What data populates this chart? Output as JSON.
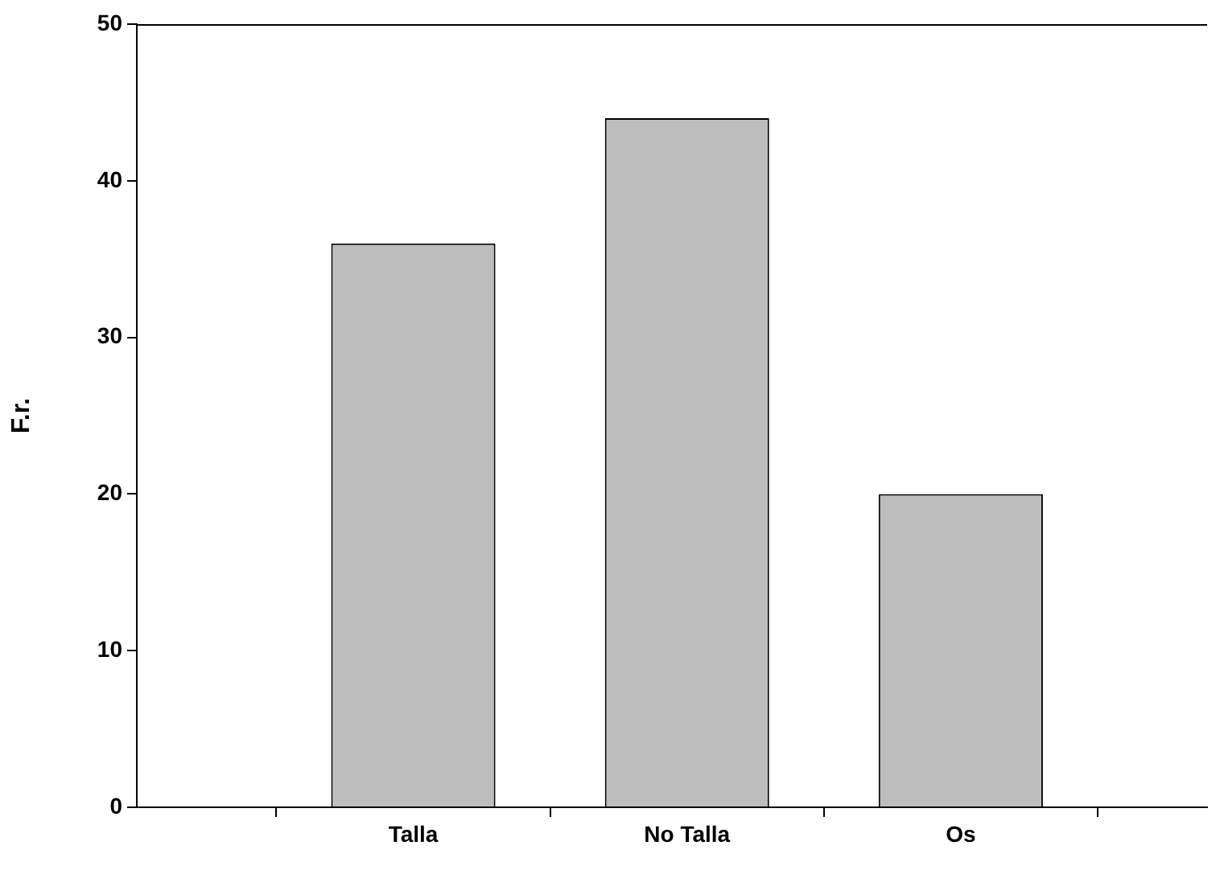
{
  "chart_data": {
    "type": "bar",
    "ylabel": "F.r.",
    "categories": [
      "Talla",
      "No Talla",
      "Os"
    ],
    "values": [
      36,
      44,
      20
    ],
    "color": "#bdbdbd",
    "ylim": [
      0,
      50
    ],
    "yticks": [
      0,
      10,
      20,
      30,
      40,
      50
    ],
    "grid": false,
    "legend": false
  }
}
